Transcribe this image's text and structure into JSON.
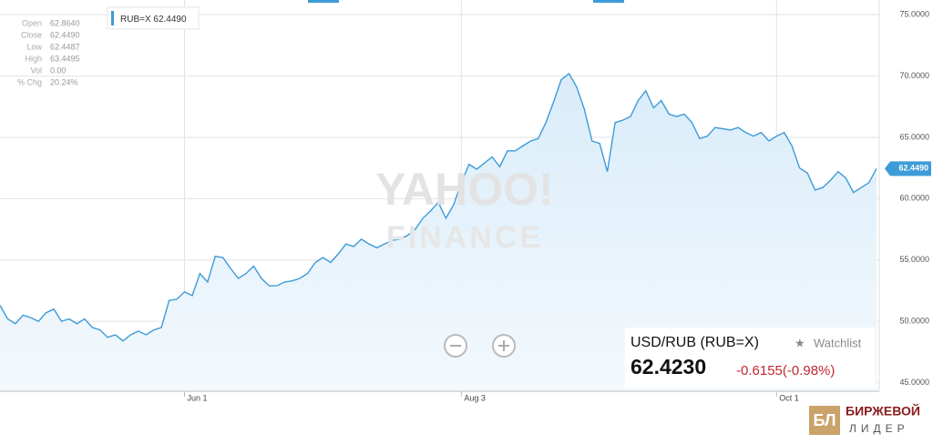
{
  "chart_data": {
    "type": "line",
    "categories": [
      null,
      null,
      null,
      null,
      null,
      null,
      null,
      null,
      null,
      null,
      null,
      null,
      null,
      null,
      null,
      null,
      null,
      null,
      null,
      null,
      null,
      null,
      null,
      null,
      "Jun 1",
      null,
      null,
      null,
      null,
      null,
      null,
      null,
      null,
      null,
      null,
      null,
      null,
      null,
      null,
      null,
      null,
      null,
      null,
      null,
      null,
      null,
      null,
      null,
      null,
      null,
      null,
      null,
      null,
      null,
      null,
      null,
      null,
      null,
      null,
      null,
      "Aug 3",
      null,
      null,
      null,
      null,
      null,
      null,
      null,
      null,
      null,
      null,
      null,
      null,
      null,
      null,
      null,
      null,
      null,
      null,
      null,
      null,
      null,
      null,
      null,
      null,
      null,
      null,
      null,
      null,
      null,
      null,
      null,
      null,
      null,
      null,
      null,
      null,
      null,
      null,
      null,
      null,
      "Oct 1",
      null,
      null,
      null,
      null,
      null,
      null,
      null,
      null,
      null,
      null,
      null,
      null,
      null
    ],
    "series": [
      {
        "name": "RUB=X",
        "color": "#3d9bd8",
        "values": [
          51.3,
          50.2,
          49.8,
          50.5,
          50.3,
          50.0,
          50.7,
          51.0,
          50.0,
          50.2,
          49.8,
          50.2,
          49.5,
          49.3,
          48.7,
          48.9,
          48.4,
          48.9,
          49.2,
          48.9,
          49.3,
          49.5,
          51.7,
          51.8,
          52.4,
          52.1,
          53.9,
          53.2,
          55.3,
          55.2,
          54.3,
          53.5,
          53.9,
          54.5,
          53.5,
          52.9,
          52.9,
          53.2,
          53.3,
          53.5,
          53.9,
          54.8,
          55.2,
          54.8,
          55.5,
          56.3,
          56.1,
          56.7,
          56.3,
          56.0,
          56.3,
          56.6,
          56.7,
          57.0,
          57.5,
          58.4,
          59.0,
          59.7,
          58.4,
          59.5,
          61.3,
          62.8,
          62.4,
          62.9,
          63.4,
          62.6,
          63.9,
          63.9,
          64.3,
          64.7,
          64.9,
          66.2,
          67.9,
          69.7,
          70.2,
          69.1,
          67.3,
          64.7,
          64.5,
          62.2,
          66.2,
          66.4,
          66.7,
          68.0,
          68.8,
          67.4,
          68.0,
          66.9,
          66.7,
          66.9,
          66.2,
          64.9,
          65.1,
          65.8,
          65.7,
          65.6,
          65.8,
          65.4,
          65.1,
          65.4,
          64.7,
          65.1,
          65.4,
          64.3,
          62.5,
          62.1,
          60.7,
          60.9,
          61.5,
          62.2,
          61.7,
          60.5,
          60.9,
          61.3,
          62.449
        ],
        "value_labels": [
          null,
          null,
          null,
          null,
          null,
          null,
          null,
          null,
          null,
          null,
          null,
          null,
          null,
          null,
          null,
          null,
          null,
          null,
          null,
          null,
          null,
          null,
          null,
          null,
          null,
          null,
          null,
          null,
          null,
          null,
          null,
          null,
          null,
          null,
          null,
          null,
          null,
          null,
          null,
          null,
          null,
          null,
          null,
          null,
          null,
          null,
          null,
          null,
          null,
          null,
          null,
          null,
          null,
          null,
          null,
          null,
          null,
          null,
          null,
          null,
          null,
          null,
          null,
          null,
          null,
          null,
          null,
          null,
          null,
          null,
          null,
          null,
          null,
          null,
          null,
          null,
          null,
          null,
          null,
          null,
          null,
          null,
          null,
          null,
          null,
          null,
          null,
          null,
          null,
          null,
          null,
          null,
          null,
          null,
          null,
          null,
          null,
          null,
          null,
          null,
          null,
          null,
          null,
          null,
          null,
          null,
          null,
          null,
          null,
          null,
          null,
          null,
          null,
          null,
          "62.4490"
        ]
      }
    ],
    "ylim": [
      44.3,
      76.2
    ],
    "yticks": [
      {
        "value": 45,
        "label": "45.0000"
      },
      {
        "value": 50,
        "label": "50.0000"
      },
      {
        "value": 55,
        "label": "55.0000"
      },
      {
        "value": 60,
        "label": "60.0000"
      },
      {
        "value": 65,
        "label": "65.0000"
      },
      {
        "value": 70,
        "label": "70.0000"
      },
      {
        "value": 75,
        "label": "75.0000"
      }
    ],
    "grid": true
  },
  "ohlc": [
    [
      "Open",
      "62.8640"
    ],
    [
      "Close",
      "62.4490"
    ],
    [
      "Low",
      "62.4487"
    ],
    [
      "High",
      "63.4495"
    ],
    [
      "Vol",
      "0.00"
    ],
    [
      "% Chg",
      "20.24%"
    ]
  ],
  "quote": {
    "name": "USD/RUB (RUB=X)",
    "watchlist": "Watchlist",
    "price": "62.4230",
    "change": "-0.6155(-0.98%)"
  },
  "watermark": [
    "YAHOO!",
    "FINANCE"
  ],
  "logo": {
    "mark": "БЛ",
    "line1": "БИРЖЕВОЙ",
    "line2": "ЛИДЕР"
  }
}
